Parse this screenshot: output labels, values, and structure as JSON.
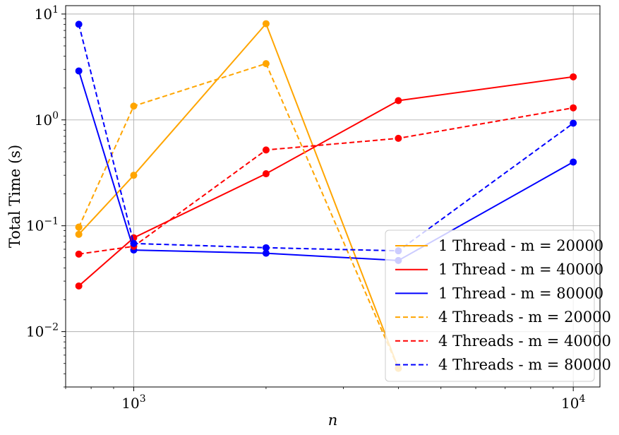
{
  "chart_data": {
    "type": "line",
    "xlabel": "n",
    "ylabel": "Total Time (s)",
    "xscale": "log",
    "yscale": "log",
    "xlim": [
      700,
      11500
    ],
    "ylim": [
      0.003,
      12
    ],
    "grid": true,
    "legend_position": "bottom-right",
    "x_ticks": [
      {
        "value": 1000,
        "base": "10",
        "exp": "3"
      },
      {
        "value": 10000,
        "base": "10",
        "exp": "4"
      }
    ],
    "y_ticks": [
      {
        "value": 0.01,
        "base": "10",
        "exp": "−2"
      },
      {
        "value": 0.1,
        "base": "10",
        "exp": "−1"
      },
      {
        "value": 1,
        "base": "10",
        "exp": "0"
      },
      {
        "value": 10,
        "base": "10",
        "exp": "1"
      }
    ],
    "series": [
      {
        "name": "1 Thread - m = 20000",
        "color": "#FFA500",
        "dash": "solid",
        "x": [
          750,
          750,
          1000,
          2000,
          4000
        ],
        "y": [
          0.097,
          0.083,
          0.3,
          8.1,
          0.0045
        ]
      },
      {
        "name": "1 Thread - m = 40000",
        "color": "#FF0000",
        "dash": "solid",
        "x": [
          750,
          1000,
          2000,
          4000,
          10000
        ],
        "y": [
          0.027,
          0.077,
          0.31,
          1.52,
          2.55
        ]
      },
      {
        "name": "1 Thread - m = 80000",
        "color": "#0000FF",
        "dash": "solid",
        "x": [
          750,
          1000,
          2000,
          4000,
          10000
        ],
        "y": [
          2.9,
          0.059,
          0.055,
          0.047,
          0.4
        ]
      },
      {
        "name": "4 Threads - m = 20000",
        "color": "#FFA500",
        "dash": "dashed",
        "x": [
          750,
          1000,
          2000,
          4000
        ],
        "y": [
          0.097,
          1.35,
          3.4,
          0.0045
        ]
      },
      {
        "name": "4 Threads - m = 40000",
        "color": "#FF0000",
        "dash": "dashed",
        "x": [
          750,
          1000,
          2000,
          4000,
          10000
        ],
        "y": [
          0.054,
          0.064,
          0.52,
          0.67,
          1.3
        ]
      },
      {
        "name": "4 Threads - m = 80000",
        "color": "#0000FF",
        "dash": "dashed",
        "x": [
          750,
          1000,
          2000,
          4000,
          10000
        ],
        "y": [
          8.0,
          0.068,
          0.062,
          0.058,
          0.93
        ]
      }
    ]
  }
}
